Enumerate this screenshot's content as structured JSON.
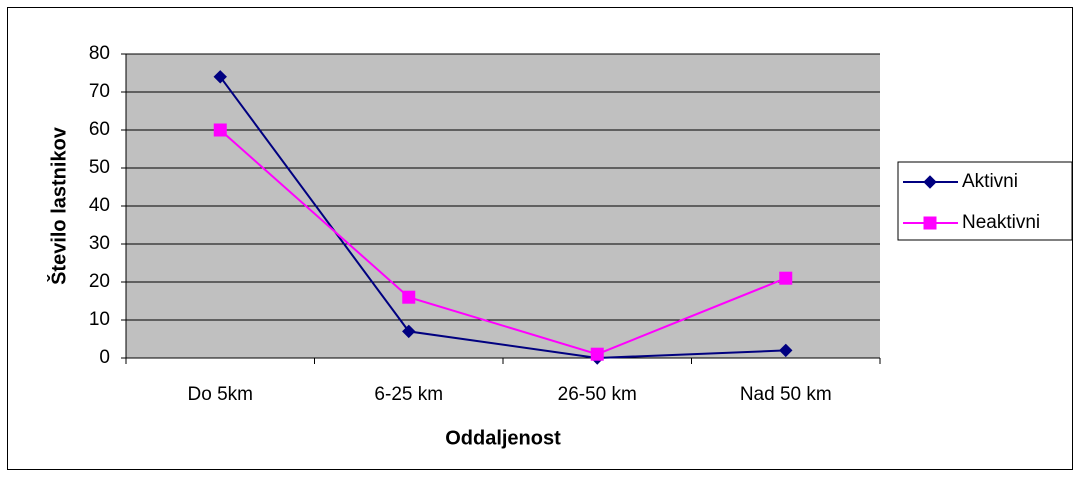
{
  "chart_data": {
    "type": "line",
    "x_label": "Oddaljenost",
    "y_label": "Število lastnikov",
    "categories": [
      "Do 5km",
      "6-25 km",
      "26-50 km",
      "Nad 50 km"
    ],
    "series": [
      {
        "name": "Aktivni",
        "color": "#000080",
        "marker": "diamond",
        "values": [
          74,
          7,
          0,
          2
        ]
      },
      {
        "name": "Neaktivni",
        "color": "#ff00ff",
        "marker": "square",
        "values": [
          60,
          16,
          1,
          21
        ]
      }
    ],
    "ylim": [
      0,
      80
    ],
    "yticks": [
      0,
      10,
      20,
      30,
      40,
      50,
      60,
      70,
      80
    ],
    "grid": true,
    "plot_background": "#c0c0c0",
    "legend": "right"
  }
}
